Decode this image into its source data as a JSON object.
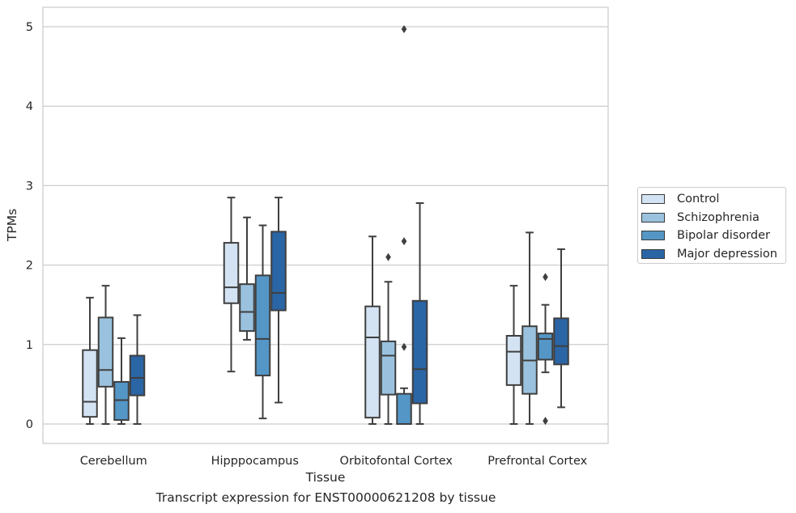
{
  "chart_data": {
    "type": "box",
    "title": "",
    "xlabel": "Tissue",
    "ylabel": "TPMs",
    "ylim": [
      -0.25,
      5.23
    ],
    "yticks": [
      "0",
      "1",
      "2",
      "3",
      "4",
      "5"
    ],
    "grid": "horizontal",
    "legend_position": "right",
    "categories": [
      "Cerebellum",
      "Hipppocampus",
      "Orbitofontal Cortex",
      "Prefrontal Cortex"
    ],
    "series": [
      {
        "name": "Control",
        "color": "#d3e3f3",
        "boxes": [
          {
            "whislo": 0.0,
            "q1": 0.09,
            "med": 0.28,
            "q3": 0.93,
            "whishi": 1.59,
            "fliers": []
          },
          {
            "whislo": 0.66,
            "q1": 1.52,
            "med": 1.72,
            "q3": 2.28,
            "whishi": 2.85,
            "fliers": []
          },
          {
            "whislo": 0.0,
            "q1": 0.08,
            "med": 1.09,
            "q3": 1.48,
            "whishi": 2.36,
            "fliers": []
          },
          {
            "whislo": 0.0,
            "q1": 0.49,
            "med": 0.91,
            "q3": 1.11,
            "whishi": 1.74,
            "fliers": []
          }
        ]
      },
      {
        "name": "Schizophrenia",
        "color": "#9ac2de",
        "boxes": [
          {
            "whislo": 0.0,
            "q1": 0.47,
            "med": 0.68,
            "q3": 1.34,
            "whishi": 1.74,
            "fliers": []
          },
          {
            "whislo": 1.06,
            "q1": 1.17,
            "med": 1.41,
            "q3": 1.76,
            "whishi": 2.6,
            "fliers": []
          },
          {
            "whislo": 0.0,
            "q1": 0.37,
            "med": 0.86,
            "q3": 1.04,
            "whishi": 1.79,
            "fliers": [
              2.1
            ]
          },
          {
            "whislo": 0.0,
            "q1": 0.38,
            "med": 0.8,
            "q3": 1.23,
            "whishi": 2.41,
            "fliers": []
          }
        ]
      },
      {
        "name": "Bipolar disorder",
        "color": "#5496c6",
        "boxes": [
          {
            "whislo": 0.0,
            "q1": 0.05,
            "med": 0.3,
            "q3": 0.53,
            "whishi": 1.08,
            "fliers": []
          },
          {
            "whislo": 0.07,
            "q1": 0.61,
            "med": 1.07,
            "q3": 1.87,
            "whishi": 2.5,
            "fliers": []
          },
          {
            "whislo": 0.0,
            "q1": 0.0,
            "med": 0.0,
            "q3": 0.38,
            "whishi": 0.45,
            "fliers": [
              0.97,
              2.3,
              4.97
            ]
          },
          {
            "whislo": 0.65,
            "q1": 0.81,
            "med": 1.07,
            "q3": 1.14,
            "whishi": 1.5,
            "fliers": [
              1.85,
              0.04
            ]
          }
        ]
      },
      {
        "name": "Major depression",
        "color": "#2a65a5",
        "boxes": [
          {
            "whislo": 0.0,
            "q1": 0.36,
            "med": 0.58,
            "q3": 0.86,
            "whishi": 1.37,
            "fliers": []
          },
          {
            "whislo": 0.27,
            "q1": 1.43,
            "med": 1.65,
            "q3": 2.42,
            "whishi": 2.85,
            "fliers": []
          },
          {
            "whislo": 0.0,
            "q1": 0.26,
            "med": 0.69,
            "q3": 1.55,
            "whishi": 2.78,
            "fliers": []
          },
          {
            "whislo": 0.21,
            "q1": 0.75,
            "med": 0.98,
            "q3": 1.33,
            "whishi": 2.2,
            "fliers": []
          }
        ]
      }
    ]
  },
  "caption": "Transcript expression for ENST00000621208 by tissue"
}
